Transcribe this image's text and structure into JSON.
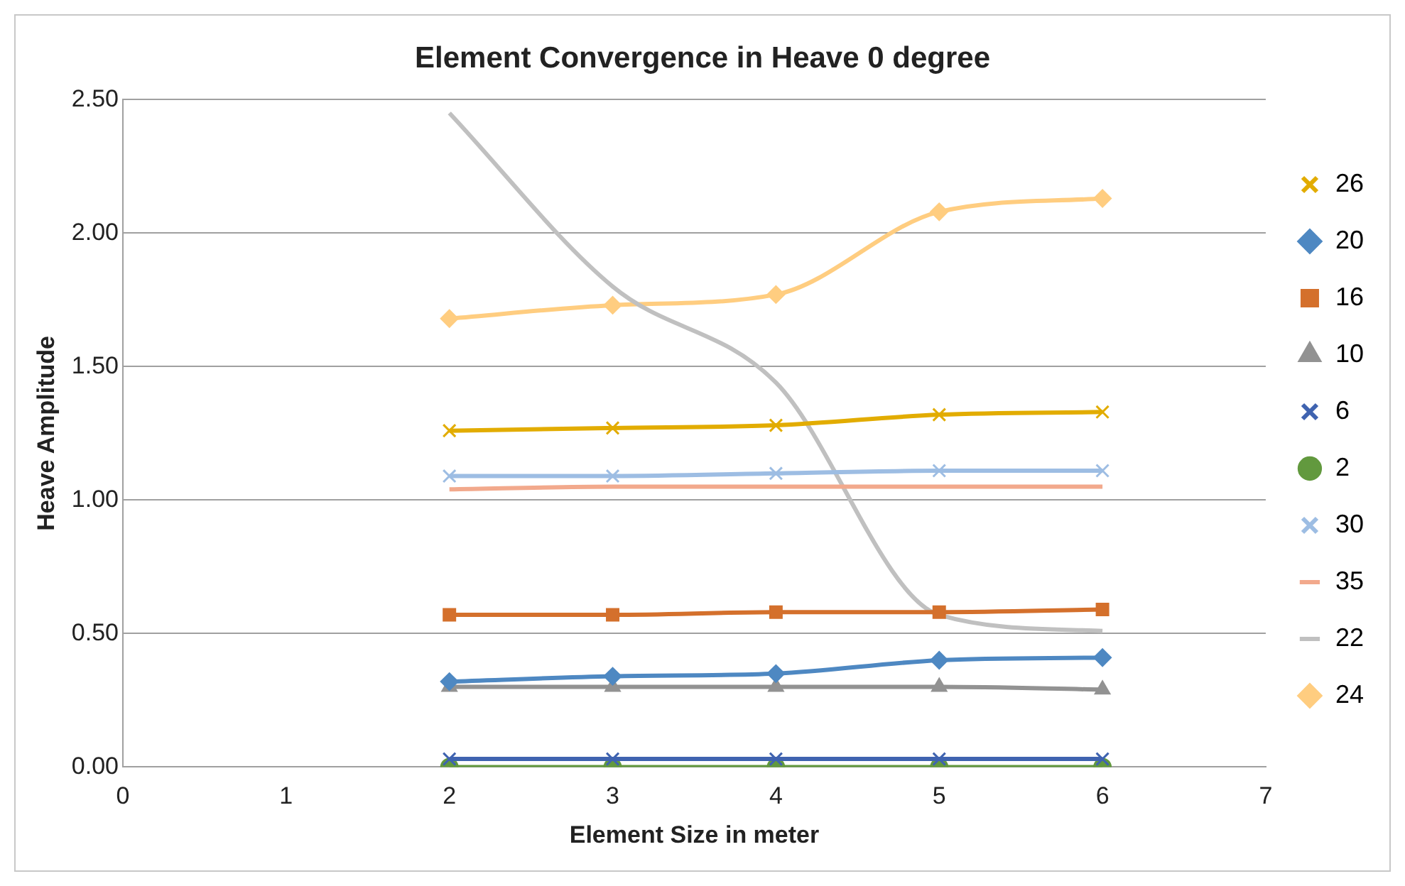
{
  "chart_data": {
    "type": "line",
    "title": "Element Convergence in Heave 0 degree",
    "xlabel": "Element Size in meter",
    "ylabel": "Heave Amplitude",
    "x": [
      2,
      3,
      4,
      5,
      6
    ],
    "xlim": [
      0,
      7
    ],
    "xticks": [
      0,
      1,
      2,
      3,
      4,
      5,
      6,
      7
    ],
    "ylim": [
      0,
      2.5
    ],
    "yticks": [
      {
        "value": 0,
        "label": "0.00"
      },
      {
        "value": 0.5,
        "label": "0.50"
      },
      {
        "value": 1,
        "label": "1.00"
      },
      {
        "value": 1.5,
        "label": "1.50"
      },
      {
        "value": 2,
        "label": "2.00"
      },
      {
        "value": 2.5,
        "label": "2.50"
      }
    ],
    "grid": "y",
    "legend": "right",
    "series": [
      {
        "name": "26",
        "color": "#e2ac00",
        "marker": "cross",
        "values": [
          1.26,
          1.27,
          1.28,
          1.32,
          1.33
        ]
      },
      {
        "name": "20",
        "color": "#4e88c2",
        "marker": "diamond",
        "values": [
          0.32,
          0.34,
          0.35,
          0.4,
          0.41
        ]
      },
      {
        "name": "16",
        "color": "#d4702c",
        "marker": "square",
        "values": [
          0.57,
          0.57,
          0.58,
          0.58,
          0.59
        ]
      },
      {
        "name": "10",
        "color": "#929292",
        "marker": "triangle",
        "values": [
          0.3,
          0.3,
          0.3,
          0.3,
          0.29
        ]
      },
      {
        "name": "6",
        "color": "#3f63b0",
        "marker": "cross",
        "values": [
          0.03,
          0.03,
          0.03,
          0.03,
          0.03
        ]
      },
      {
        "name": "2",
        "color": "#62993e",
        "marker": "circle",
        "values": [
          0,
          0,
          0,
          0,
          0
        ]
      },
      {
        "name": "30",
        "color": "#9dbde3",
        "marker": "cross",
        "values": [
          1.09,
          1.09,
          1.1,
          1.11,
          1.11
        ]
      },
      {
        "name": "35",
        "color": "#f2a98c",
        "marker": "none",
        "values": [
          1.04,
          1.05,
          1.05,
          1.05,
          1.05
        ]
      },
      {
        "name": "22",
        "color": "#c0c0c0",
        "marker": "none",
        "values": [
          2.45,
          1.8,
          1.44,
          0.57,
          0.51
        ]
      },
      {
        "name": "24",
        "color": "#ffcd80",
        "marker": "diamond",
        "values": [
          1.68,
          1.73,
          1.77,
          2.08,
          2.13
        ]
      }
    ]
  }
}
